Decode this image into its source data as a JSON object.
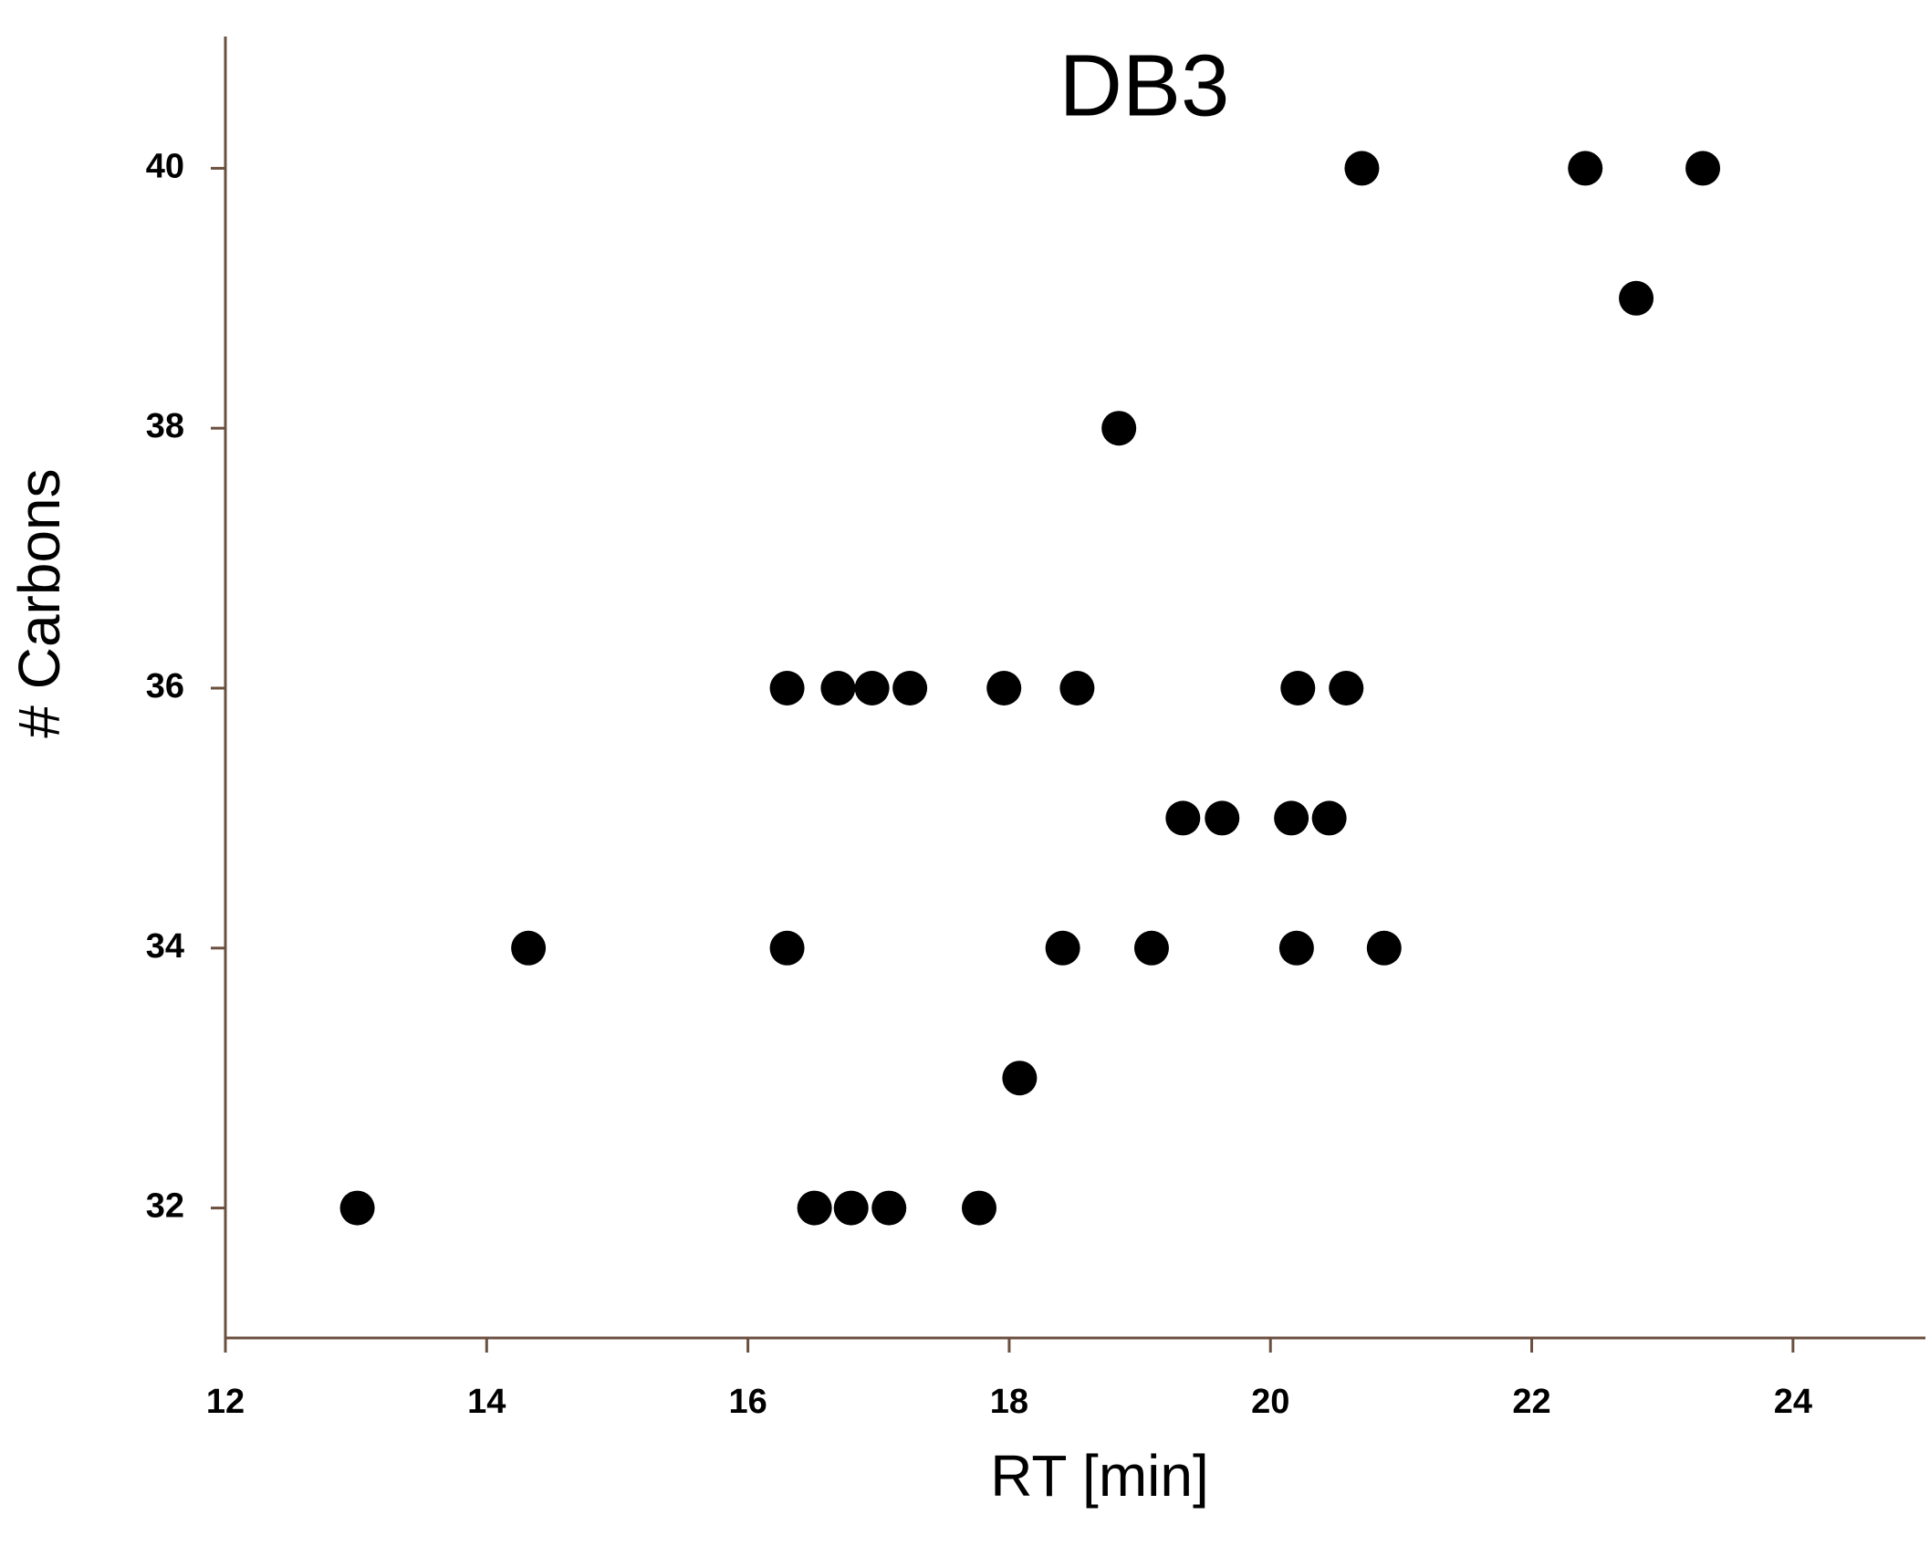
{
  "chart_data": {
    "type": "scatter",
    "title": "DB3",
    "x_label": "RT [min]",
    "y_label": "# Carbons",
    "xlim": [
      12,
      25
    ],
    "xticks": [
      12,
      14,
      16,
      18,
      20,
      22,
      24
    ],
    "ylim": [
      31,
      41
    ],
    "yticks": [
      32,
      34,
      36,
      38,
      40
    ],
    "color": "#000000",
    "x": [
      20.7,
      22.41,
      23.31,
      22.8,
      18.84,
      16.3,
      16.69,
      16.95,
      17.24,
      17.96,
      18.52,
      20.21,
      20.58,
      19.33,
      19.63,
      20.16,
      20.45,
      14.32,
      16.3,
      18.41,
      19.09,
      20.2,
      20.87,
      18.08,
      13.01,
      16.51,
      16.79,
      17.08,
      17.77
    ],
    "y": [
      40,
      40,
      40,
      39,
      38,
      36,
      36,
      36,
      36,
      36,
      36,
      36,
      36,
      35,
      35,
      35,
      35,
      34,
      34,
      34,
      34,
      34,
      34,
      33,
      32,
      32,
      32,
      32,
      32
    ]
  }
}
